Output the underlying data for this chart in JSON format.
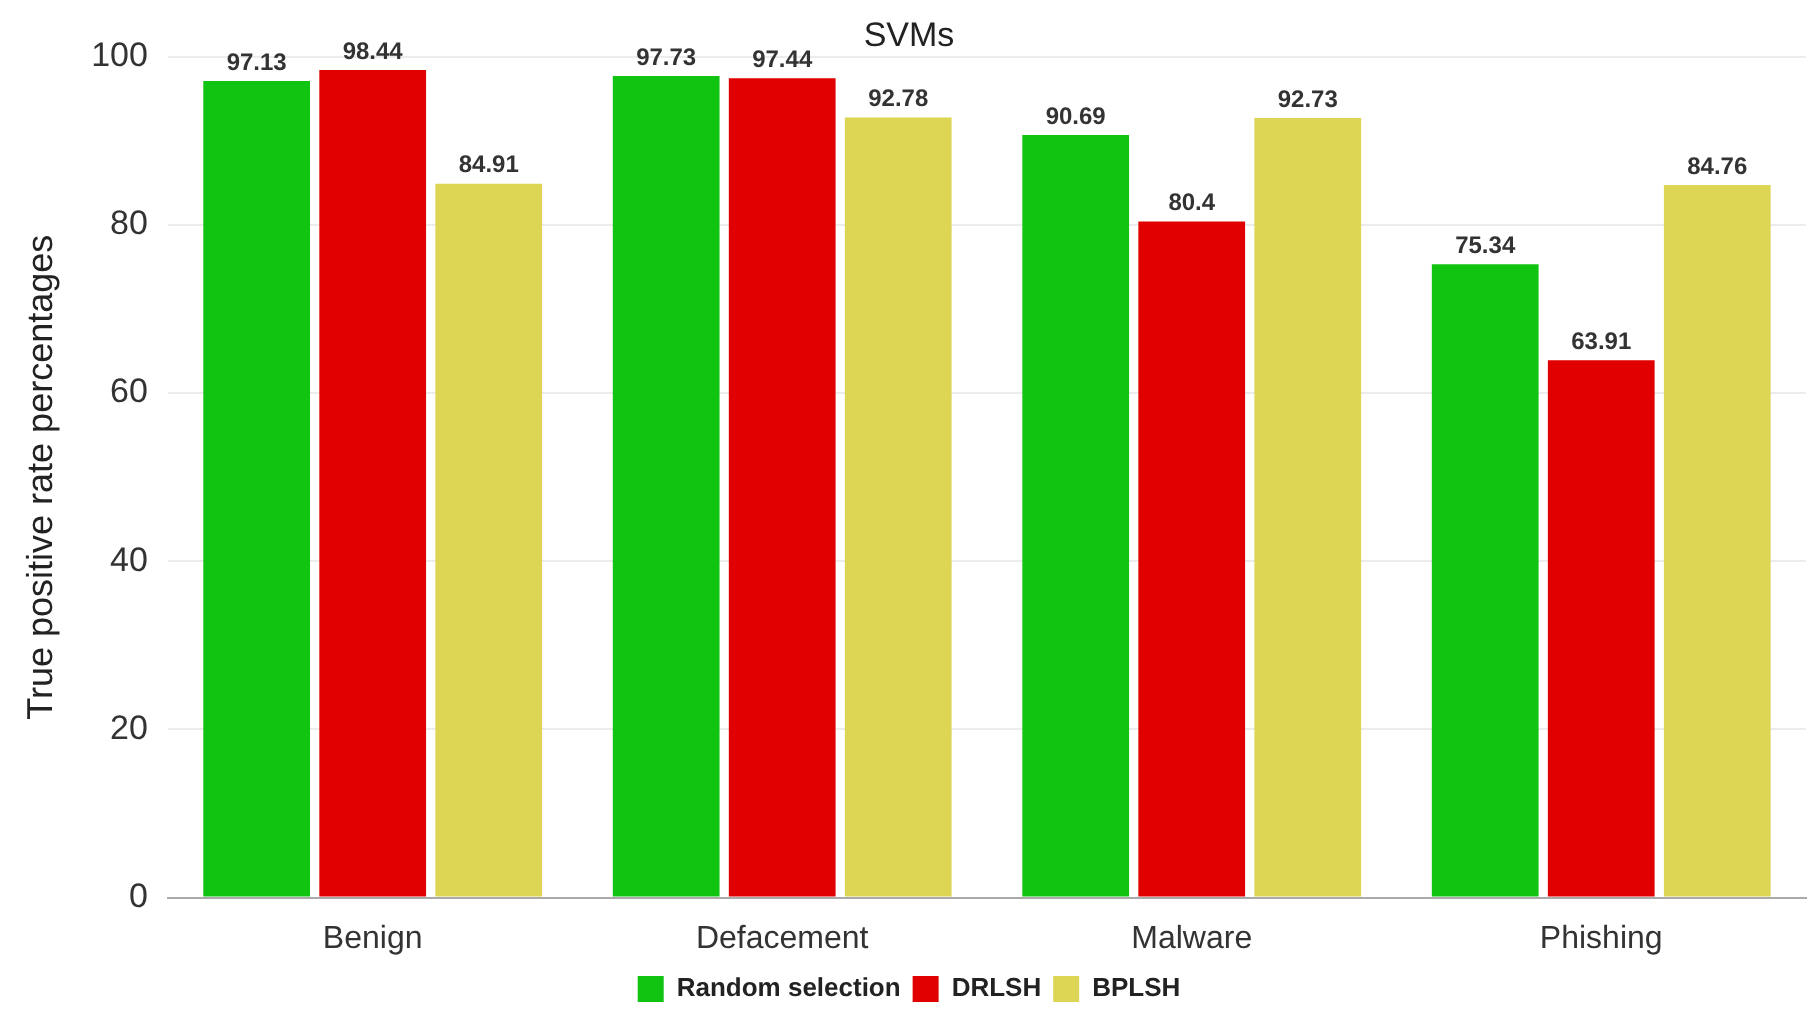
{
  "chart_data": {
    "type": "bar",
    "title": "SVMs",
    "ylabel": "True positive rate percentages",
    "categories": [
      "Benign",
      "Defacement",
      "Malware",
      "Phishing"
    ],
    "series": [
      {
        "name": "Random selection",
        "color": "#12c412",
        "values": [
          97.13,
          97.73,
          90.69,
          75.34
        ]
      },
      {
        "name": "DRLSH",
        "color": "#e00000",
        "values": [
          98.44,
          97.44,
          80.4,
          63.91
        ]
      },
      {
        "name": "BPLSH",
        "color": "#ddd655",
        "values": [
          84.91,
          92.78,
          92.73,
          84.76
        ]
      }
    ],
    "ylim": [
      0,
      100
    ],
    "yticks": [
      0,
      20,
      40,
      60,
      80,
      100
    ],
    "grid": "y",
    "legend": "bottom",
    "data_labels": true
  }
}
